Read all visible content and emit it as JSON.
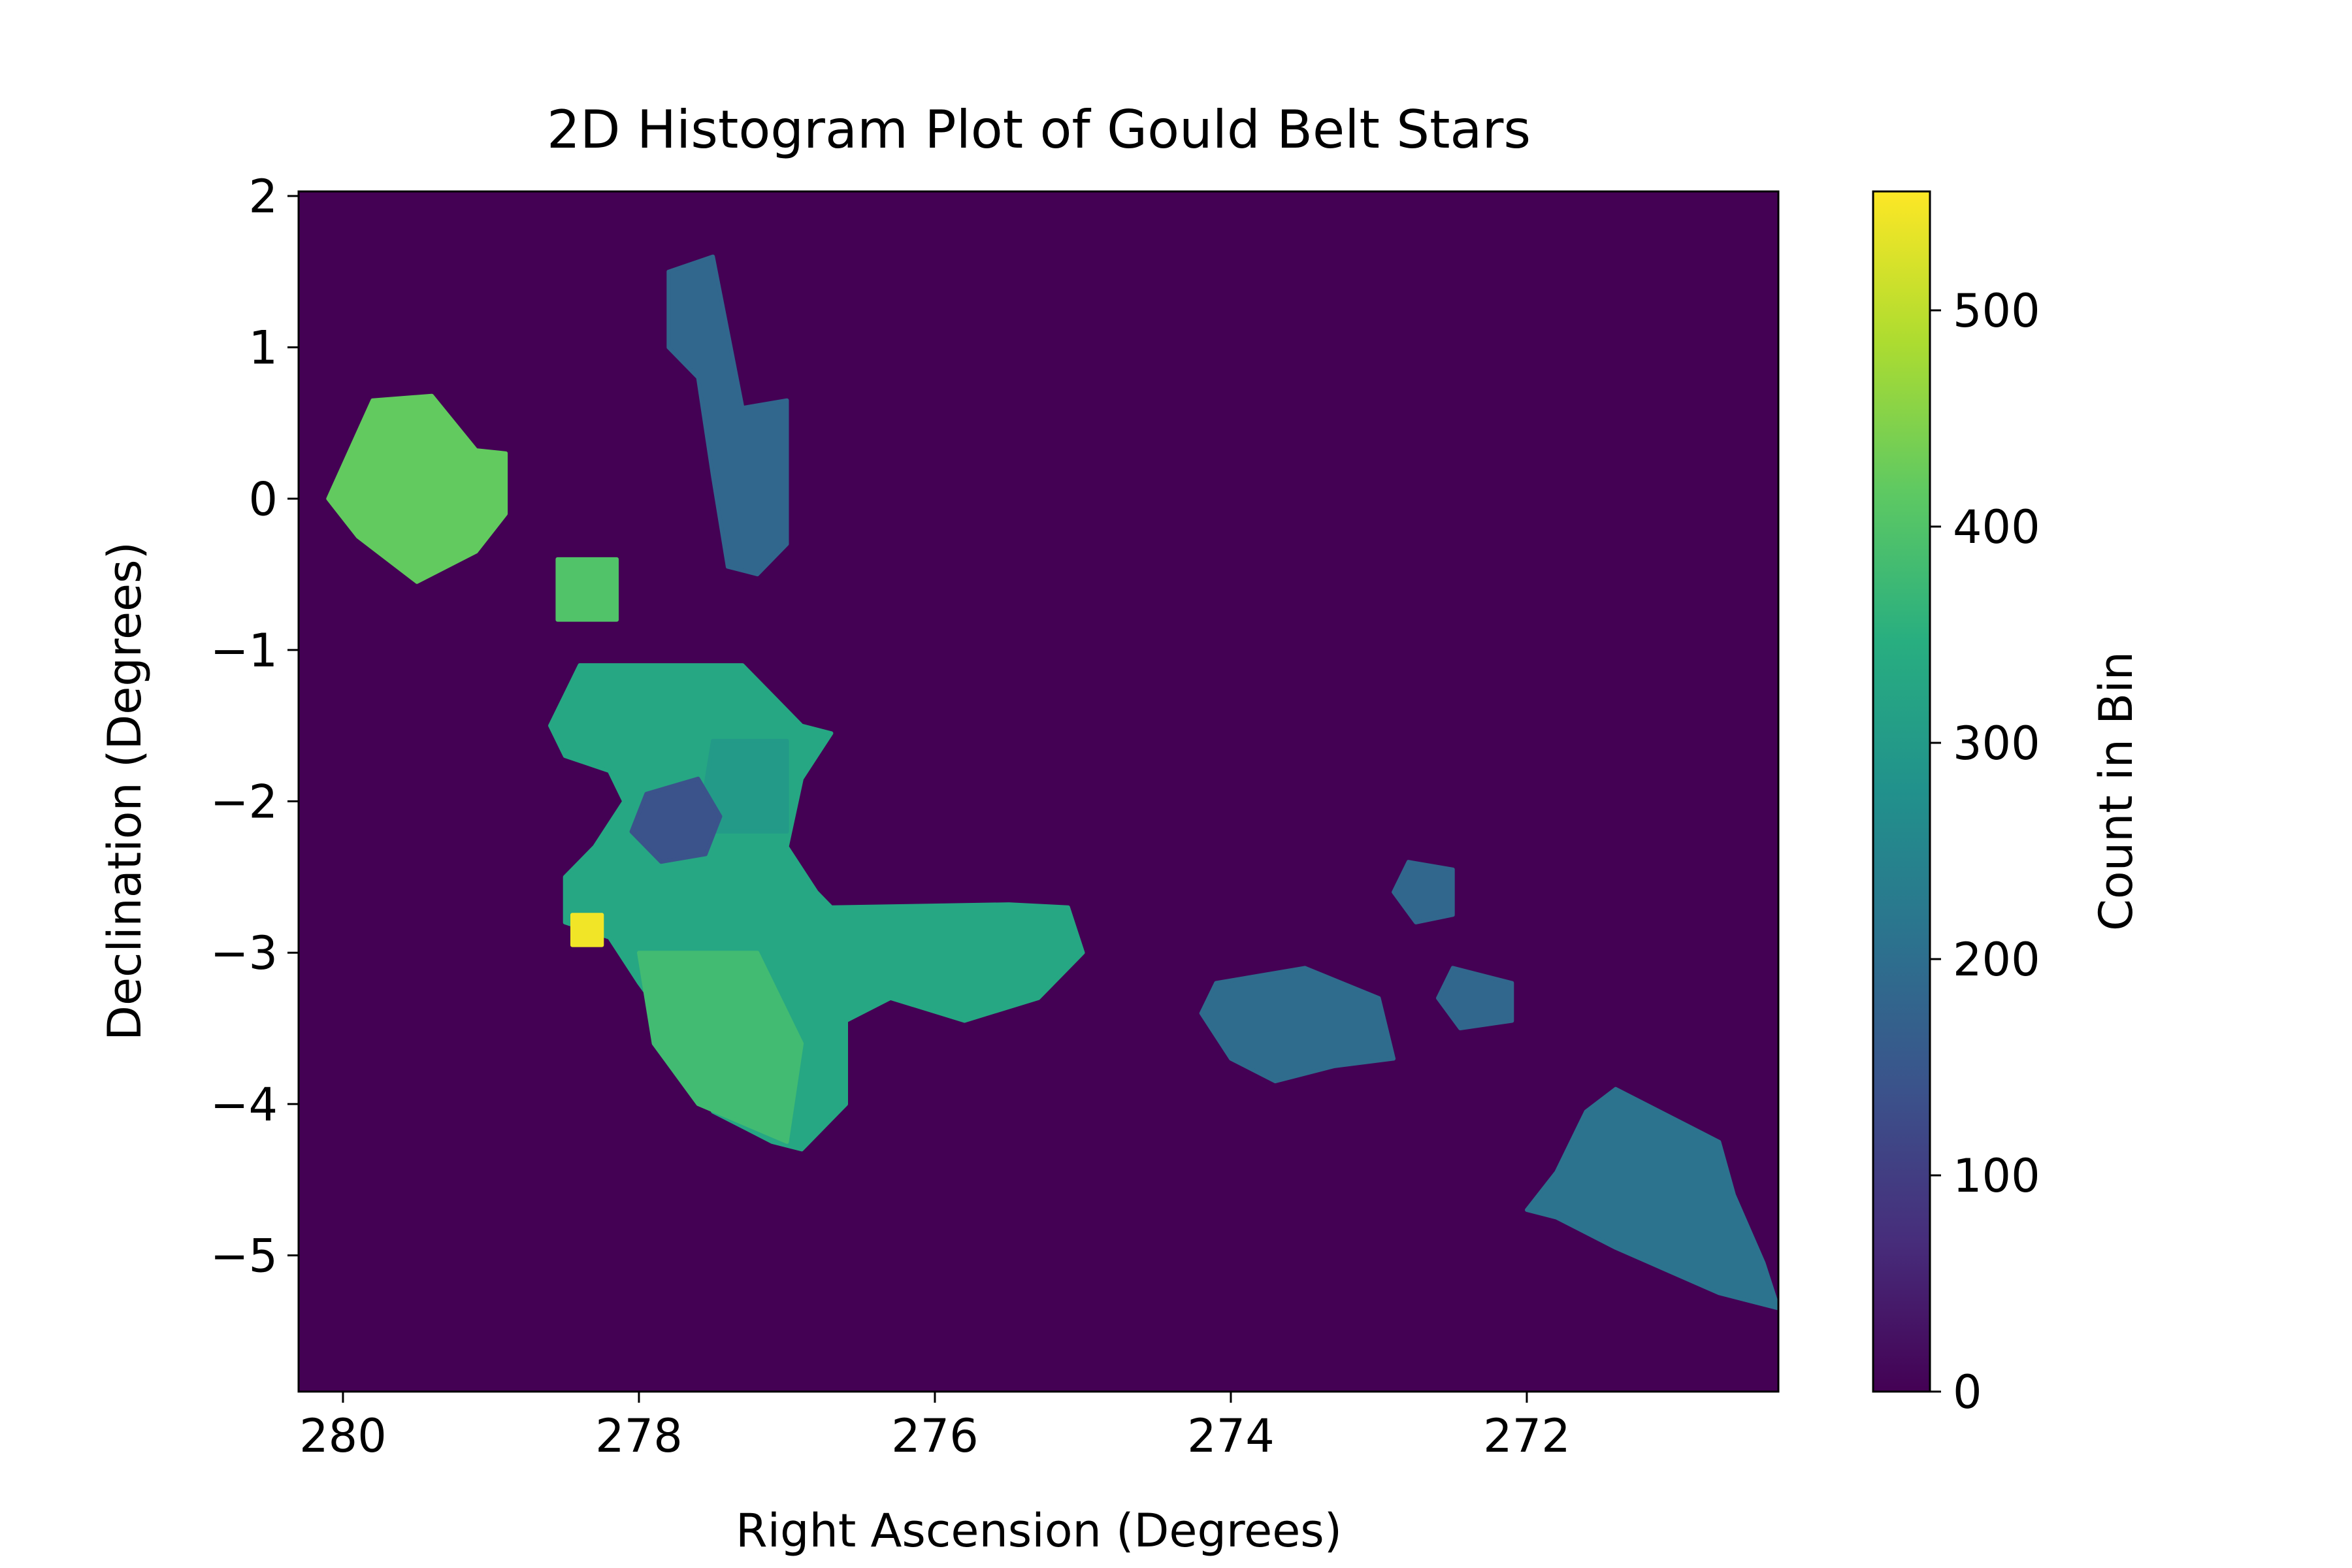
{
  "chart_data": {
    "type": "heatmap",
    "title": "2D Histogram Plot of Gould Belt Stars",
    "xlabel": "Right Ascension (Degrees)",
    "ylabel": "Declination (Degrees)",
    "colorbar_label": "Count in Bin",
    "x_axis_inverted": true,
    "xlim": [
      280.3,
      270.3
    ],
    "ylim": [
      -5.9,
      2.03
    ],
    "x_ticks": [
      {
        "value": 280,
        "label": "280"
      },
      {
        "value": 278,
        "label": "278"
      },
      {
        "value": 276,
        "label": "276"
      },
      {
        "value": 274,
        "label": "274"
      },
      {
        "value": 272,
        "label": "272"
      }
    ],
    "y_ticks": [
      {
        "value": 2,
        "label": "2"
      },
      {
        "value": 1,
        "label": "1"
      },
      {
        "value": 0,
        "label": "0"
      },
      {
        "value": -1,
        "label": "−1"
      },
      {
        "value": -2,
        "label": "−2"
      },
      {
        "value": -3,
        "label": "−3"
      },
      {
        "value": -4,
        "label": "−4"
      },
      {
        "value": -5,
        "label": "−5"
      }
    ],
    "colorbar_range": [
      0,
      555
    ],
    "colorbar_ticks": [
      {
        "value": 0,
        "label": "0"
      },
      {
        "value": 100,
        "label": "100"
      },
      {
        "value": 200,
        "label": "200"
      },
      {
        "value": 300,
        "label": "300"
      },
      {
        "value": 400,
        "label": "400"
      },
      {
        "value": 500,
        "label": "500"
      }
    ],
    "colormap": "viridis",
    "background_count": 0,
    "regions": [
      {
        "id": "northwest-blob",
        "count": 420,
        "outline": [
          [
            279.8,
            0.65
          ],
          [
            279.4,
            0.68
          ],
          [
            279.1,
            0.32
          ],
          [
            278.9,
            0.3
          ],
          [
            278.9,
            -0.1
          ],
          [
            279.1,
            -0.35
          ],
          [
            279.5,
            -0.55
          ],
          [
            279.9,
            -0.25
          ],
          [
            280.1,
            0.0
          ]
        ]
      },
      {
        "id": "small-square",
        "count": 400,
        "outline": [
          [
            278.55,
            -0.4
          ],
          [
            278.15,
            -0.4
          ],
          [
            278.15,
            -0.8
          ],
          [
            278.55,
            -0.8
          ]
        ]
      },
      {
        "id": "northern-strip",
        "count": 185,
        "outline": [
          [
            277.8,
            1.5
          ],
          [
            277.5,
            1.6
          ],
          [
            277.4,
            1.1
          ],
          [
            277.3,
            0.6
          ],
          [
            277.0,
            0.65
          ],
          [
            277.0,
            -0.3
          ],
          [
            277.2,
            -0.5
          ],
          [
            277.4,
            -0.45
          ],
          [
            277.5,
            0.15
          ],
          [
            277.6,
            0.8
          ],
          [
            277.8,
            1.0
          ]
        ]
      },
      {
        "id": "main-complex",
        "count": 330,
        "outline": [
          [
            278.4,
            -1.1
          ],
          [
            277.3,
            -1.1
          ],
          [
            277.1,
            -1.3
          ],
          [
            276.9,
            -1.5
          ],
          [
            276.7,
            -1.55
          ],
          [
            276.9,
            -1.85
          ],
          [
            277.0,
            -2.3
          ],
          [
            276.8,
            -2.6
          ],
          [
            276.7,
            -2.7
          ],
          [
            275.5,
            -2.68
          ],
          [
            275.1,
            -2.7
          ],
          [
            275.0,
            -3.0
          ],
          [
            275.3,
            -3.3
          ],
          [
            275.8,
            -3.45
          ],
          [
            276.3,
            -3.3
          ],
          [
            276.6,
            -3.45
          ],
          [
            276.6,
            -4.0
          ],
          [
            276.8,
            -4.2
          ],
          [
            276.9,
            -4.3
          ],
          [
            277.1,
            -4.25
          ],
          [
            277.5,
            -4.05
          ],
          [
            277.7,
            -3.6
          ],
          [
            278.0,
            -3.2
          ],
          [
            278.2,
            -2.9
          ],
          [
            278.5,
            -2.8
          ],
          [
            278.5,
            -2.5
          ],
          [
            278.3,
            -2.3
          ],
          [
            278.1,
            -2.0
          ],
          [
            278.2,
            -1.8
          ],
          [
            278.5,
            -1.7
          ],
          [
            278.6,
            -1.5
          ],
          [
            278.5,
            -1.3
          ]
        ]
      },
      {
        "id": "main-northeast-part",
        "count": 300,
        "outline": [
          [
            277.5,
            -1.6
          ],
          [
            277.0,
            -1.6
          ],
          [
            277.0,
            -2.2
          ],
          [
            277.6,
            -2.2
          ]
        ]
      },
      {
        "id": "southern-lobe",
        "count": 380,
        "outline": [
          [
            278.0,
            -3.0
          ],
          [
            277.2,
            -3.0
          ],
          [
            276.9,
            -3.6
          ],
          [
            277.0,
            -4.25
          ],
          [
            277.6,
            -4.0
          ],
          [
            277.9,
            -3.6
          ]
        ]
      },
      {
        "id": "central-hole",
        "count": 140,
        "outline": [
          [
            277.95,
            -1.95
          ],
          [
            277.6,
            -1.85
          ],
          [
            277.45,
            -2.1
          ],
          [
            277.55,
            -2.35
          ],
          [
            277.85,
            -2.4
          ],
          [
            278.05,
            -2.2
          ]
        ]
      },
      {
        "id": "hot-spot",
        "count": 545,
        "outline": [
          [
            278.45,
            -2.75
          ],
          [
            278.25,
            -2.75
          ],
          [
            278.25,
            -2.95
          ],
          [
            278.45,
            -2.95
          ]
        ]
      },
      {
        "id": "central-small-blob",
        "count": 195,
        "outline": [
          [
            274.1,
            -3.2
          ],
          [
            273.5,
            -3.1
          ],
          [
            273.0,
            -3.3
          ],
          [
            272.9,
            -3.7
          ],
          [
            273.3,
            -3.75
          ],
          [
            273.7,
            -3.85
          ],
          [
            274.0,
            -3.7
          ],
          [
            274.2,
            -3.4
          ]
        ]
      },
      {
        "id": "tiny-blob-north",
        "count": 185,
        "outline": [
          [
            272.8,
            -2.4
          ],
          [
            272.5,
            -2.45
          ],
          [
            272.5,
            -2.75
          ],
          [
            272.75,
            -2.8
          ],
          [
            272.9,
            -2.6
          ]
        ]
      },
      {
        "id": "tiny-blob-south",
        "count": 185,
        "outline": [
          [
            272.5,
            -3.1
          ],
          [
            272.1,
            -3.2
          ],
          [
            272.1,
            -3.45
          ],
          [
            272.45,
            -3.5
          ],
          [
            272.6,
            -3.3
          ]
        ]
      },
      {
        "id": "southeast-blob",
        "count": 210,
        "outline": [
          [
            271.4,
            -3.9
          ],
          [
            270.9,
            -4.15
          ],
          [
            270.7,
            -4.25
          ],
          [
            270.6,
            -4.6
          ],
          [
            270.4,
            -5.05
          ],
          [
            270.3,
            -5.35
          ],
          [
            270.7,
            -5.25
          ],
          [
            271.4,
            -4.95
          ],
          [
            271.8,
            -4.75
          ],
          [
            272.0,
            -4.7
          ],
          [
            271.8,
            -4.45
          ],
          [
            271.6,
            -4.05
          ]
        ]
      }
    ]
  }
}
